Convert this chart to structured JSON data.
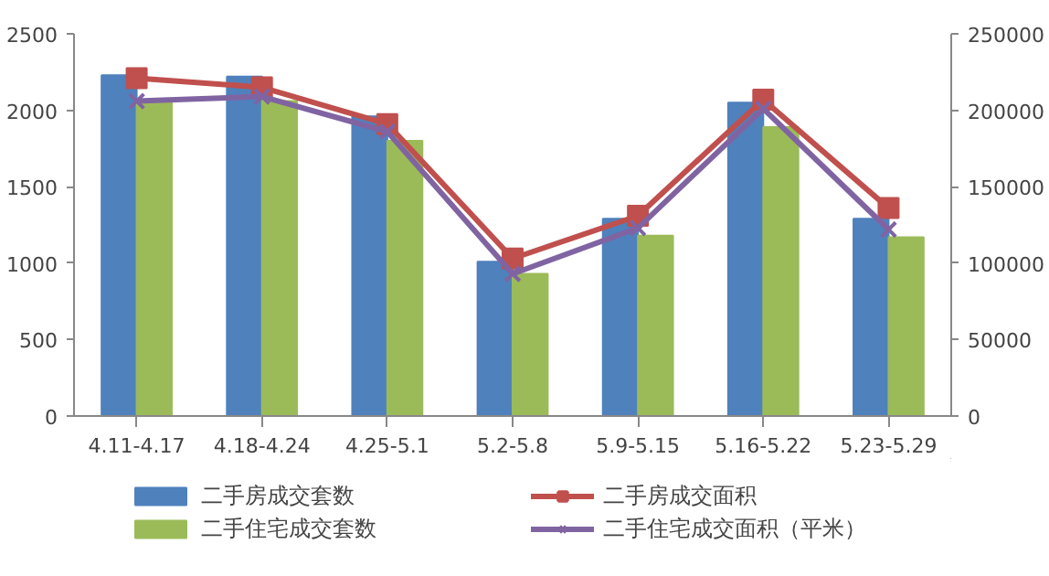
{
  "chart_data": {
    "type": "bar",
    "categories": [
      "4.11-4.17",
      "4.18-4.24",
      "4.25-5.1",
      "5.2-5.8",
      "5.9-5.15",
      "5.16-5.22",
      "5.23-5.29"
    ],
    "ylim": [
      0,
      2500
    ],
    "yticks": [
      0,
      500,
      1000,
      1500,
      2000,
      2500
    ],
    "y2lim": [
      0,
      250000
    ],
    "y2ticks": [
      0,
      50000,
      100000,
      150000,
      200000,
      250000
    ],
    "grid": false,
    "legend": "bottom",
    "series": [
      {
        "name": "二手房成交套数",
        "color": "#4f81bd",
        "values": [
          2230,
          2220,
          1960,
          1010,
          1290,
          2050,
          1290
        ]
      },
      {
        "name": "二手住宅成交套数",
        "color": "#9bbb59",
        "values": [
          2070,
          2060,
          1800,
          930,
          1180,
          1890,
          1170
        ]
      },
      {
        "name": "二手房成交面积",
        "type": "line",
        "axis": "y2",
        "marker": "square",
        "color": "#c0504d",
        "values": [
          221000,
          215000,
          191000,
          103000,
          131000,
          207000,
          136000
        ]
      },
      {
        "name": "二手住宅成交面积（平米）",
        "type": "line",
        "axis": "y2",
        "marker": "cross",
        "color": "#8064a2",
        "values": [
          206000,
          209000,
          186000,
          93000,
          123000,
          201000,
          122000
        ]
      }
    ]
  }
}
